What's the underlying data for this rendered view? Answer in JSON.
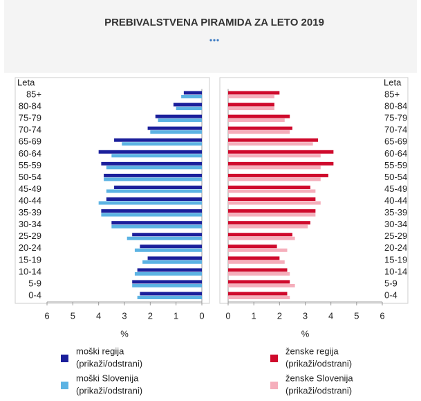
{
  "chart_data": {
    "type": "pyramid",
    "title": "PREBIVALSTVENA PIRAMIDA ZA LETO 2019",
    "category_label": "Leta",
    "xlabel": "%",
    "categories": [
      "85+",
      "80-84",
      "75-79",
      "70-74",
      "65-69",
      "60-64",
      "55-59",
      "50-54",
      "45-49",
      "40-44",
      "35-39",
      "30-34",
      "25-29",
      "20-24",
      "15-19",
      "10-14",
      "5-9",
      "0-4"
    ],
    "xlim": [
      0,
      6
    ],
    "xticks": [
      0,
      1,
      2,
      3,
      4,
      5,
      6
    ],
    "legend_action": "(prikaži/odstrani)",
    "series": [
      {
        "name": "moški regija",
        "color": "#1b1f9b",
        "side": "left",
        "values": [
          0.7,
          1.1,
          1.8,
          2.1,
          3.4,
          4.0,
          3.9,
          3.8,
          3.4,
          3.7,
          3.9,
          3.5,
          2.7,
          2.4,
          2.1,
          2.5,
          2.7,
          2.4
        ]
      },
      {
        "name": "moški Slovenija",
        "color": "#5cb3e3",
        "side": "left",
        "values": [
          0.8,
          1.0,
          1.7,
          2.0,
          3.1,
          3.5,
          3.7,
          3.8,
          3.7,
          4.0,
          3.9,
          3.5,
          2.9,
          2.6,
          2.3,
          2.6,
          2.7,
          2.5
        ]
      },
      {
        "name": "ženske regija",
        "color": "#cf0a2c",
        "side": "right",
        "values": [
          2.0,
          1.8,
          2.4,
          2.5,
          3.5,
          4.1,
          4.1,
          3.9,
          3.2,
          3.4,
          3.4,
          3.2,
          2.5,
          1.9,
          2.0,
          2.3,
          2.4,
          2.3
        ]
      },
      {
        "name": "ženske Slovenija",
        "color": "#f5aebb",
        "side": "right",
        "values": [
          1.8,
          1.8,
          2.2,
          2.4,
          3.3,
          3.6,
          3.6,
          3.6,
          3.4,
          3.6,
          3.4,
          3.1,
          2.6,
          2.3,
          2.2,
          2.4,
          2.6,
          2.4
        ]
      }
    ]
  }
}
